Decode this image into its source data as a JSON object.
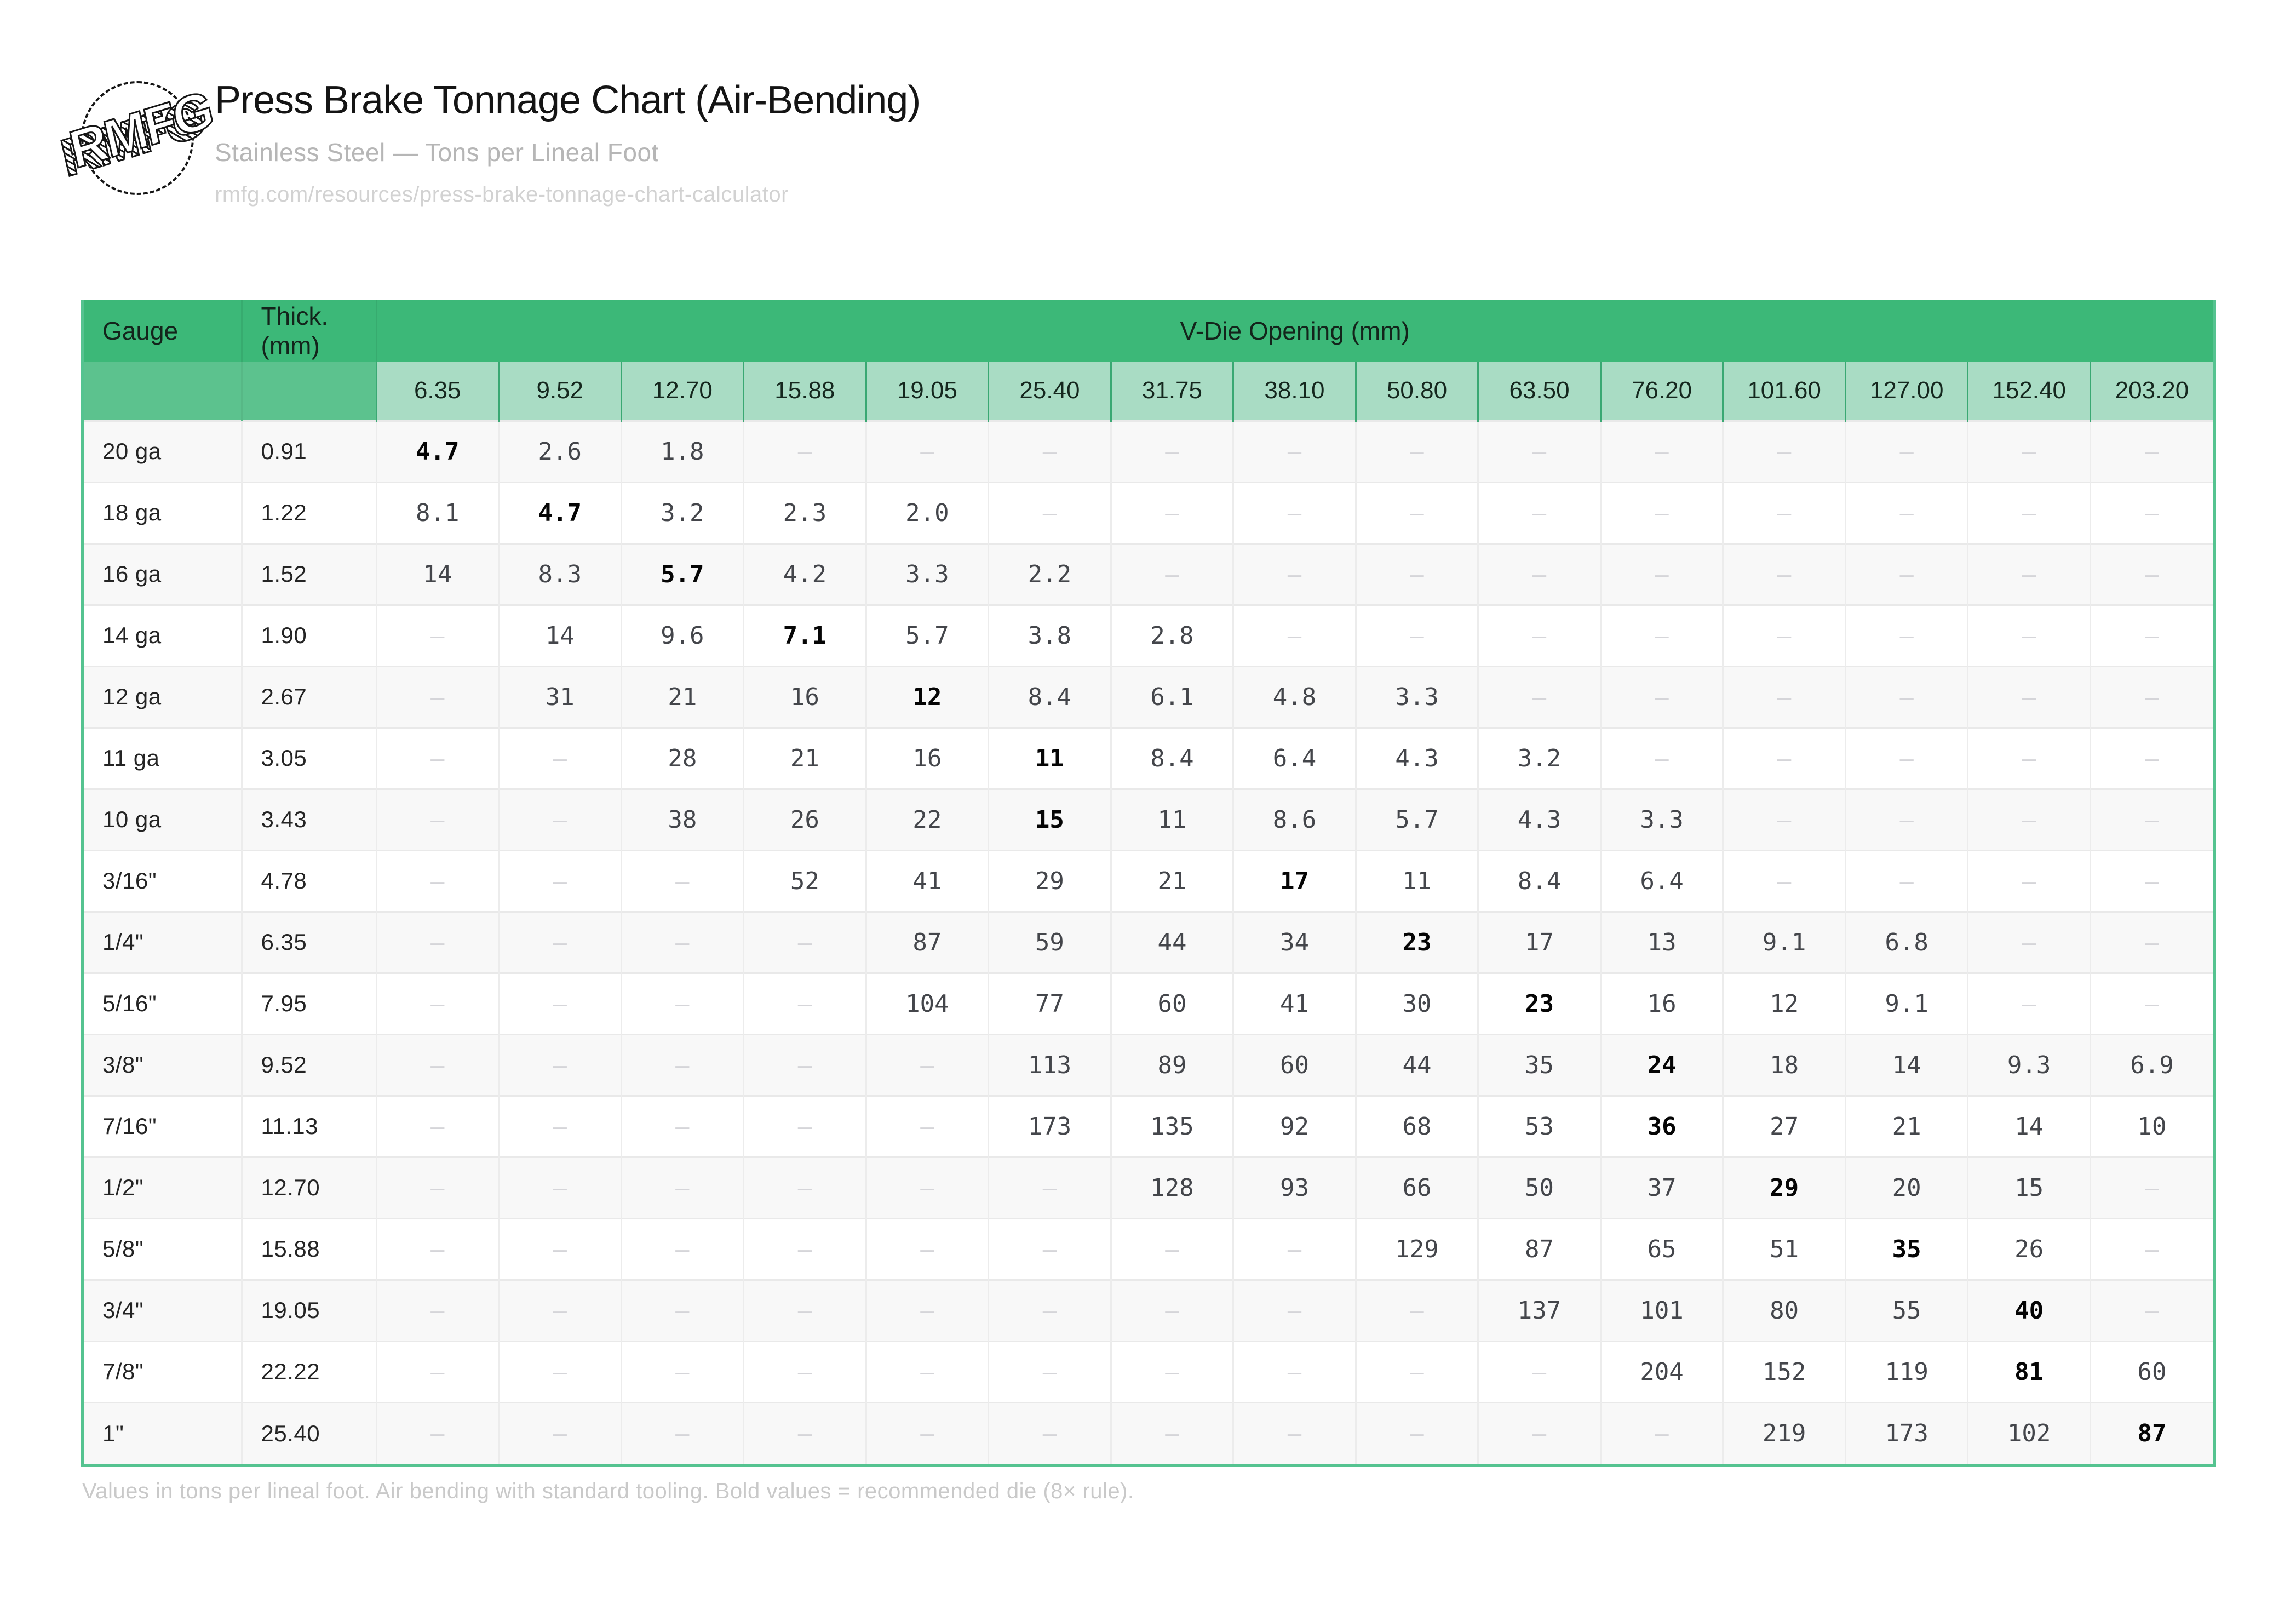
{
  "header": {
    "logo_text": "RMFG",
    "title": "Press Brake Tonnage Chart (Air-Bending)",
    "subtitle": "Stainless Steel — Tons per Lineal Foot",
    "url": "rmfg.com/resources/press-brake-tonnage-chart-calculator"
  },
  "table": {
    "gauge_header": "Gauge",
    "thickness_header": "Thick. (mm)",
    "vdie_group_header": "V-Die Opening (mm)",
    "vdie_openings_mm": [
      "6.35",
      "9.52",
      "12.70",
      "15.88",
      "19.05",
      "25.40",
      "31.75",
      "38.10",
      "50.80",
      "63.50",
      "76.20",
      "101.60",
      "127.00",
      "152.40",
      "203.20"
    ],
    "empty_cell": "–",
    "rows": [
      {
        "gauge": "20 ga",
        "thickness_mm": "0.91",
        "bold_index": 0,
        "tons": [
          "4.7",
          "2.6",
          "1.8",
          null,
          null,
          null,
          null,
          null,
          null,
          null,
          null,
          null,
          null,
          null,
          null
        ]
      },
      {
        "gauge": "18 ga",
        "thickness_mm": "1.22",
        "bold_index": 1,
        "tons": [
          "8.1",
          "4.7",
          "3.2",
          "2.3",
          "2.0",
          null,
          null,
          null,
          null,
          null,
          null,
          null,
          null,
          null,
          null
        ]
      },
      {
        "gauge": "16 ga",
        "thickness_mm": "1.52",
        "bold_index": 2,
        "tons": [
          "14",
          "8.3",
          "5.7",
          "4.2",
          "3.3",
          "2.2",
          null,
          null,
          null,
          null,
          null,
          null,
          null,
          null,
          null
        ]
      },
      {
        "gauge": "14 ga",
        "thickness_mm": "1.90",
        "bold_index": 3,
        "tons": [
          null,
          "14",
          "9.6",
          "7.1",
          "5.7",
          "3.8",
          "2.8",
          null,
          null,
          null,
          null,
          null,
          null,
          null,
          null
        ]
      },
      {
        "gauge": "12 ga",
        "thickness_mm": "2.67",
        "bold_index": 4,
        "tons": [
          null,
          "31",
          "21",
          "16",
          "12",
          "8.4",
          "6.1",
          "4.8",
          "3.3",
          null,
          null,
          null,
          null,
          null,
          null
        ]
      },
      {
        "gauge": "11 ga",
        "thickness_mm": "3.05",
        "bold_index": 5,
        "tons": [
          null,
          null,
          "28",
          "21",
          "16",
          "11",
          "8.4",
          "6.4",
          "4.3",
          "3.2",
          null,
          null,
          null,
          null,
          null
        ]
      },
      {
        "gauge": "10 ga",
        "thickness_mm": "3.43",
        "bold_index": 5,
        "tons": [
          null,
          null,
          "38",
          "26",
          "22",
          "15",
          "11",
          "8.6",
          "5.7",
          "4.3",
          "3.3",
          null,
          null,
          null,
          null
        ]
      },
      {
        "gauge": "3/16\"",
        "thickness_mm": "4.78",
        "bold_index": 7,
        "tons": [
          null,
          null,
          null,
          "52",
          "41",
          "29",
          "21",
          "17",
          "11",
          "8.4",
          "6.4",
          null,
          null,
          null,
          null
        ]
      },
      {
        "gauge": "1/4\"",
        "thickness_mm": "6.35",
        "bold_index": 8,
        "tons": [
          null,
          null,
          null,
          null,
          "87",
          "59",
          "44",
          "34",
          "23",
          "17",
          "13",
          "9.1",
          "6.8",
          null,
          null
        ]
      },
      {
        "gauge": "5/16\"",
        "thickness_mm": "7.95",
        "bold_index": 9,
        "tons": [
          null,
          null,
          null,
          null,
          "104",
          "77",
          "60",
          "41",
          "30",
          "23",
          "16",
          "12",
          "9.1",
          null,
          null
        ]
      },
      {
        "gauge": "3/8\"",
        "thickness_mm": "9.52",
        "bold_index": 10,
        "tons": [
          null,
          null,
          null,
          null,
          null,
          "113",
          "89",
          "60",
          "44",
          "35",
          "24",
          "18",
          "14",
          "9.3",
          "6.9"
        ]
      },
      {
        "gauge": "7/16\"",
        "thickness_mm": "11.13",
        "bold_index": 10,
        "tons": [
          null,
          null,
          null,
          null,
          null,
          "173",
          "135",
          "92",
          "68",
          "53",
          "36",
          "27",
          "21",
          "14",
          "10"
        ]
      },
      {
        "gauge": "1/2\"",
        "thickness_mm": "12.70",
        "bold_index": 11,
        "tons": [
          null,
          null,
          null,
          null,
          null,
          null,
          "128",
          "93",
          "66",
          "50",
          "37",
          "29",
          "20",
          "15",
          null
        ]
      },
      {
        "gauge": "5/8\"",
        "thickness_mm": "15.88",
        "bold_index": 12,
        "tons": [
          null,
          null,
          null,
          null,
          null,
          null,
          null,
          null,
          "129",
          "87",
          "65",
          "51",
          "35",
          "26",
          null
        ]
      },
      {
        "gauge": "3/4\"",
        "thickness_mm": "19.05",
        "bold_index": 13,
        "tons": [
          null,
          null,
          null,
          null,
          null,
          null,
          null,
          null,
          null,
          "137",
          "101",
          "80",
          "55",
          "40",
          null
        ]
      },
      {
        "gauge": "7/8\"",
        "thickness_mm": "22.22",
        "bold_index": 13,
        "tons": [
          null,
          null,
          null,
          null,
          null,
          null,
          null,
          null,
          null,
          null,
          "204",
          "152",
          "119",
          "81",
          "60"
        ]
      },
      {
        "gauge": "1\"",
        "thickness_mm": "25.40",
        "bold_index": 14,
        "tons": [
          null,
          null,
          null,
          null,
          null,
          null,
          null,
          null,
          null,
          null,
          null,
          "219",
          "173",
          "102",
          "87"
        ]
      }
    ]
  },
  "footnote": "Values in tons per lineal foot. Air bending with standard tooling. Bold values = recommended die (8× rule).",
  "colors": {
    "header_green": "#3cb878",
    "subheader_green": "#a9dcc4",
    "filler_green": "#5cc28e",
    "frame_green": "#55c390",
    "row_stripe": "#f8f8f8",
    "value_text": "#44464b",
    "bold_text": "#050505",
    "dash_text": "#d5d5d9",
    "footnote": "#c9c9c9"
  }
}
